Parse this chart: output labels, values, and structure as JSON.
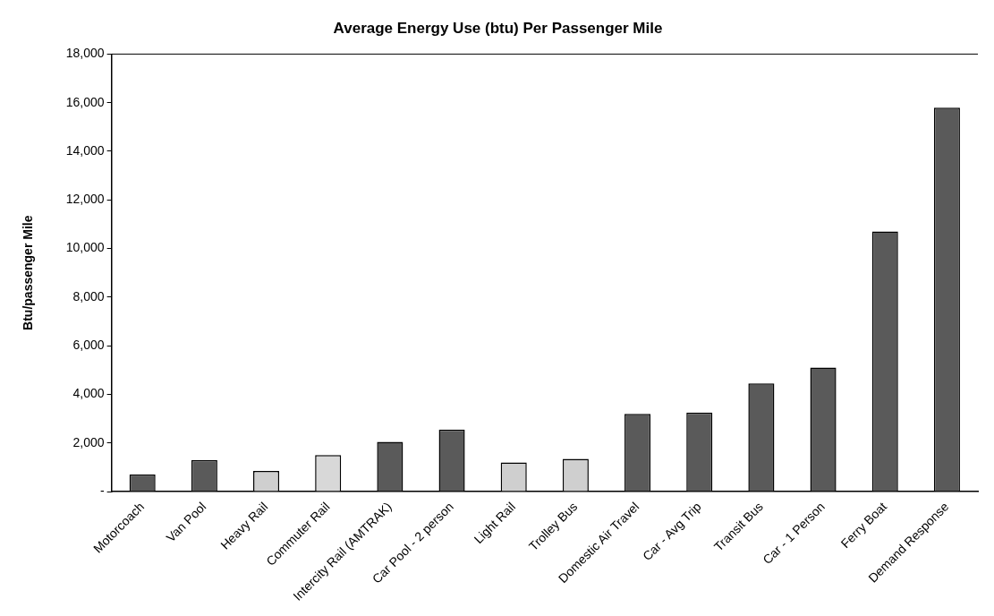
{
  "chart_data": {
    "type": "bar",
    "title": "Average Energy Use (btu) Per Passenger Mile",
    "ylabel": "Btu/passenger Mile",
    "categories": [
      "Motorcoach",
      "Van Pool",
      "Heavy Rail",
      "Commuter Rail",
      "Intercity Rail (AMTRAK)",
      "Car Pool - 2 person",
      "Light Rail",
      "Trolley Bus",
      "Domestic Air Travel",
      "Car - Avg Trip",
      "Transit Bus",
      "Car - 1 Person",
      "Ferry Boat",
      "Demand Response"
    ],
    "values": [
      700,
      1300,
      850,
      1500,
      2050,
      2550,
      1200,
      1350,
      3200,
      3250,
      4450,
      5100,
      10700,
      15800
    ],
    "colors": [
      "#5a5a5a",
      "#5a5a5a",
      "#cfcfcf",
      "#d8d8d8",
      "#5a5a5a",
      "#5a5a5a",
      "#cfcfcf",
      "#cfcfcf",
      "#5a5a5a",
      "#5a5a5a",
      "#5a5a5a",
      "#5a5a5a",
      "#5a5a5a",
      "#5a5a5a"
    ],
    "ylim": [
      0,
      18000
    ],
    "yticks": [
      {
        "value": 0,
        "label": "-"
      },
      {
        "value": 2000,
        "label": "2,000"
      },
      {
        "value": 4000,
        "label": "4,000"
      },
      {
        "value": 6000,
        "label": "6,000"
      },
      {
        "value": 8000,
        "label": "8,000"
      },
      {
        "value": 10000,
        "label": "10,000"
      },
      {
        "value": 12000,
        "label": "12,000"
      },
      {
        "value": 14000,
        "label": "14,000"
      },
      {
        "value": 16000,
        "label": "16,000"
      },
      {
        "value": 18000,
        "label": "18,000"
      }
    ],
    "grid": false,
    "legend": false
  }
}
